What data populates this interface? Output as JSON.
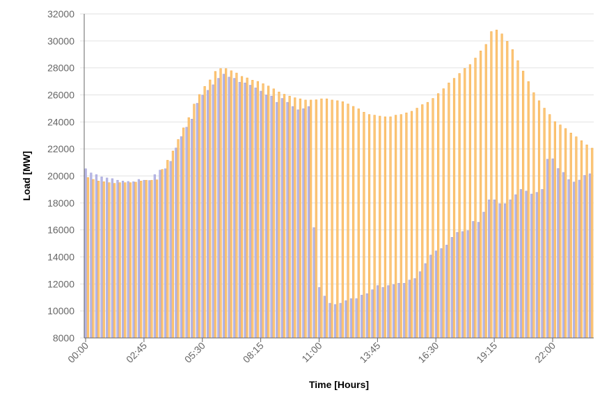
{
  "chart_data": {
    "type": "bar",
    "title": "",
    "xlabel": "Time [Hours]",
    "ylabel": "Load [MW]",
    "ylim": [
      8000,
      32000
    ],
    "y_ticks": [
      8000,
      10000,
      12000,
      14000,
      16000,
      18000,
      20000,
      22000,
      24000,
      26000,
      28000,
      30000,
      32000
    ],
    "x_tick_labels": [
      "00:00",
      "02:45",
      "05:30",
      "08:15",
      "11:00",
      "13:45",
      "16:30",
      "19:15",
      "22:00"
    ],
    "grid": true,
    "legend": "none",
    "x": [
      "00:00",
      "00:15",
      "00:30",
      "00:45",
      "01:00",
      "01:15",
      "01:30",
      "01:45",
      "02:00",
      "02:15",
      "02:30",
      "02:45",
      "03:00",
      "03:15",
      "03:30",
      "03:45",
      "04:00",
      "04:15",
      "04:30",
      "04:45",
      "05:00",
      "05:15",
      "05:30",
      "05:45",
      "06:00",
      "06:15",
      "06:30",
      "06:45",
      "07:00",
      "07:15",
      "07:30",
      "07:45",
      "08:00",
      "08:15",
      "08:30",
      "08:45",
      "09:00",
      "09:15",
      "09:30",
      "09:45",
      "10:00",
      "10:15",
      "10:30",
      "10:45",
      "11:00",
      "11:15",
      "11:30",
      "11:45",
      "12:00",
      "12:15",
      "12:30",
      "12:45",
      "13:00",
      "13:15",
      "13:30",
      "13:45",
      "14:00",
      "14:15",
      "14:30",
      "14:45",
      "15:00",
      "15:15",
      "15:30",
      "15:45",
      "16:00",
      "16:15",
      "16:30",
      "16:45",
      "17:00",
      "17:15",
      "17:30",
      "17:45",
      "18:00",
      "18:15",
      "18:30",
      "18:45",
      "19:00",
      "19:15",
      "19:30",
      "19:45",
      "20:00",
      "20:15",
      "20:30",
      "20:45",
      "21:00",
      "21:15",
      "21:30",
      "21:45",
      "22:00",
      "22:15",
      "22:30",
      "22:45",
      "23:00",
      "23:15",
      "23:30",
      "23:45"
    ],
    "series": [
      {
        "color": "#b8b8e6",
        "values": [
          20530,
          20220,
          20100,
          19930,
          19850,
          19800,
          19680,
          19620,
          19590,
          19570,
          19740,
          19680,
          19660,
          20100,
          20430,
          20530,
          21080,
          22070,
          22910,
          23610,
          24210,
          25380,
          25980,
          26340,
          26750,
          27230,
          27540,
          27320,
          27230,
          26940,
          26890,
          26720,
          26520,
          26280,
          26000,
          25910,
          25450,
          25740,
          25450,
          25140,
          24900,
          24980,
          25140,
          16170,
          11740,
          11100,
          10570,
          10480,
          10570,
          10760,
          10910,
          10910,
          11170,
          11280,
          11570,
          11880,
          11740,
          11880,
          11950,
          12050,
          12050,
          12290,
          12400,
          12910,
          13510,
          14140,
          14450,
          14620,
          14880,
          15450,
          15820,
          15880,
          15950,
          16630,
          16570,
          17320,
          18230,
          18230,
          17940,
          17940,
          18230,
          18610,
          19000,
          18880,
          18660,
          18780,
          19000,
          21240,
          21270,
          20550,
          20260,
          19730,
          19550,
          19690,
          20040,
          20160
        ]
      },
      {
        "color": "#fcc77a",
        "values": [
          19880,
          19740,
          19620,
          19570,
          19500,
          19450,
          19500,
          19500,
          19500,
          19540,
          19620,
          19680,
          19680,
          19710,
          20480,
          21160,
          21850,
          22700,
          23560,
          24320,
          25320,
          26030,
          26630,
          27110,
          27740,
          27950,
          27950,
          27790,
          27620,
          27370,
          27260,
          27090,
          27000,
          26830,
          26660,
          26450,
          26220,
          26050,
          25910,
          25790,
          25710,
          25620,
          25620,
          25640,
          25710,
          25710,
          25620,
          25570,
          25500,
          25330,
          25150,
          24970,
          24720,
          24550,
          24500,
          24430,
          24380,
          24380,
          24500,
          24550,
          24670,
          24790,
          25020,
          25280,
          25450,
          25740,
          26100,
          26460,
          26890,
          27230,
          27590,
          27960,
          28250,
          28730,
          29260,
          29740,
          30690,
          30810,
          30520,
          29970,
          29360,
          28540,
          27770,
          26990,
          26170,
          25570,
          25020,
          24550,
          24020,
          23780,
          23510,
          23180,
          22900,
          22610,
          22300,
          22060
        ]
      }
    ]
  }
}
